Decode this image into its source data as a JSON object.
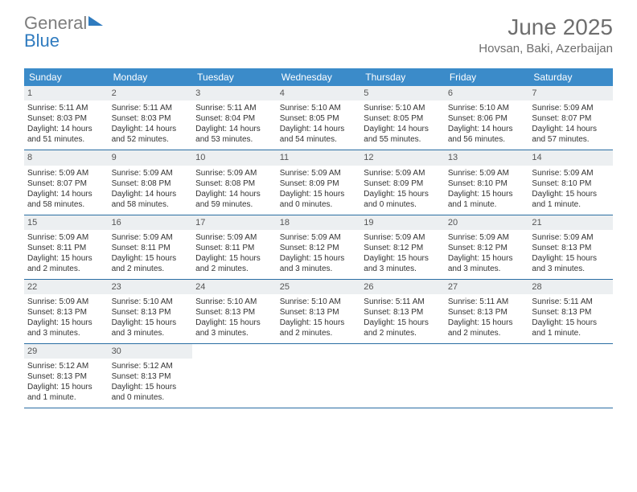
{
  "logo": {
    "text_gray": "General",
    "text_blue": "Blue"
  },
  "header": {
    "title": "June 2025",
    "location": "Hovsan, Baki, Azerbaijan"
  },
  "colors": {
    "header_bg": "#3b8bc9",
    "daynum_bg": "#eceff1",
    "week_border": "#2a6ea3",
    "text_gray": "#6e6e6e"
  },
  "weekdays": [
    "Sunday",
    "Monday",
    "Tuesday",
    "Wednesday",
    "Thursday",
    "Friday",
    "Saturday"
  ],
  "weeks": [
    [
      {
        "n": "1",
        "sunrise": "Sunrise: 5:11 AM",
        "sunset": "Sunset: 8:03 PM",
        "d1": "Daylight: 14 hours",
        "d2": "and 51 minutes."
      },
      {
        "n": "2",
        "sunrise": "Sunrise: 5:11 AM",
        "sunset": "Sunset: 8:03 PM",
        "d1": "Daylight: 14 hours",
        "d2": "and 52 minutes."
      },
      {
        "n": "3",
        "sunrise": "Sunrise: 5:11 AM",
        "sunset": "Sunset: 8:04 PM",
        "d1": "Daylight: 14 hours",
        "d2": "and 53 minutes."
      },
      {
        "n": "4",
        "sunrise": "Sunrise: 5:10 AM",
        "sunset": "Sunset: 8:05 PM",
        "d1": "Daylight: 14 hours",
        "d2": "and 54 minutes."
      },
      {
        "n": "5",
        "sunrise": "Sunrise: 5:10 AM",
        "sunset": "Sunset: 8:05 PM",
        "d1": "Daylight: 14 hours",
        "d2": "and 55 minutes."
      },
      {
        "n": "6",
        "sunrise": "Sunrise: 5:10 AM",
        "sunset": "Sunset: 8:06 PM",
        "d1": "Daylight: 14 hours",
        "d2": "and 56 minutes."
      },
      {
        "n": "7",
        "sunrise": "Sunrise: 5:09 AM",
        "sunset": "Sunset: 8:07 PM",
        "d1": "Daylight: 14 hours",
        "d2": "and 57 minutes."
      }
    ],
    [
      {
        "n": "8",
        "sunrise": "Sunrise: 5:09 AM",
        "sunset": "Sunset: 8:07 PM",
        "d1": "Daylight: 14 hours",
        "d2": "and 58 minutes."
      },
      {
        "n": "9",
        "sunrise": "Sunrise: 5:09 AM",
        "sunset": "Sunset: 8:08 PM",
        "d1": "Daylight: 14 hours",
        "d2": "and 58 minutes."
      },
      {
        "n": "10",
        "sunrise": "Sunrise: 5:09 AM",
        "sunset": "Sunset: 8:08 PM",
        "d1": "Daylight: 14 hours",
        "d2": "and 59 minutes."
      },
      {
        "n": "11",
        "sunrise": "Sunrise: 5:09 AM",
        "sunset": "Sunset: 8:09 PM",
        "d1": "Daylight: 15 hours",
        "d2": "and 0 minutes."
      },
      {
        "n": "12",
        "sunrise": "Sunrise: 5:09 AM",
        "sunset": "Sunset: 8:09 PM",
        "d1": "Daylight: 15 hours",
        "d2": "and 0 minutes."
      },
      {
        "n": "13",
        "sunrise": "Sunrise: 5:09 AM",
        "sunset": "Sunset: 8:10 PM",
        "d1": "Daylight: 15 hours",
        "d2": "and 1 minute."
      },
      {
        "n": "14",
        "sunrise": "Sunrise: 5:09 AM",
        "sunset": "Sunset: 8:10 PM",
        "d1": "Daylight: 15 hours",
        "d2": "and 1 minute."
      }
    ],
    [
      {
        "n": "15",
        "sunrise": "Sunrise: 5:09 AM",
        "sunset": "Sunset: 8:11 PM",
        "d1": "Daylight: 15 hours",
        "d2": "and 2 minutes."
      },
      {
        "n": "16",
        "sunrise": "Sunrise: 5:09 AM",
        "sunset": "Sunset: 8:11 PM",
        "d1": "Daylight: 15 hours",
        "d2": "and 2 minutes."
      },
      {
        "n": "17",
        "sunrise": "Sunrise: 5:09 AM",
        "sunset": "Sunset: 8:11 PM",
        "d1": "Daylight: 15 hours",
        "d2": "and 2 minutes."
      },
      {
        "n": "18",
        "sunrise": "Sunrise: 5:09 AM",
        "sunset": "Sunset: 8:12 PM",
        "d1": "Daylight: 15 hours",
        "d2": "and 3 minutes."
      },
      {
        "n": "19",
        "sunrise": "Sunrise: 5:09 AM",
        "sunset": "Sunset: 8:12 PM",
        "d1": "Daylight: 15 hours",
        "d2": "and 3 minutes."
      },
      {
        "n": "20",
        "sunrise": "Sunrise: 5:09 AM",
        "sunset": "Sunset: 8:12 PM",
        "d1": "Daylight: 15 hours",
        "d2": "and 3 minutes."
      },
      {
        "n": "21",
        "sunrise": "Sunrise: 5:09 AM",
        "sunset": "Sunset: 8:13 PM",
        "d1": "Daylight: 15 hours",
        "d2": "and 3 minutes."
      }
    ],
    [
      {
        "n": "22",
        "sunrise": "Sunrise: 5:09 AM",
        "sunset": "Sunset: 8:13 PM",
        "d1": "Daylight: 15 hours",
        "d2": "and 3 minutes."
      },
      {
        "n": "23",
        "sunrise": "Sunrise: 5:10 AM",
        "sunset": "Sunset: 8:13 PM",
        "d1": "Daylight: 15 hours",
        "d2": "and 3 minutes."
      },
      {
        "n": "24",
        "sunrise": "Sunrise: 5:10 AM",
        "sunset": "Sunset: 8:13 PM",
        "d1": "Daylight: 15 hours",
        "d2": "and 3 minutes."
      },
      {
        "n": "25",
        "sunrise": "Sunrise: 5:10 AM",
        "sunset": "Sunset: 8:13 PM",
        "d1": "Daylight: 15 hours",
        "d2": "and 2 minutes."
      },
      {
        "n": "26",
        "sunrise": "Sunrise: 5:11 AM",
        "sunset": "Sunset: 8:13 PM",
        "d1": "Daylight: 15 hours",
        "d2": "and 2 minutes."
      },
      {
        "n": "27",
        "sunrise": "Sunrise: 5:11 AM",
        "sunset": "Sunset: 8:13 PM",
        "d1": "Daylight: 15 hours",
        "d2": "and 2 minutes."
      },
      {
        "n": "28",
        "sunrise": "Sunrise: 5:11 AM",
        "sunset": "Sunset: 8:13 PM",
        "d1": "Daylight: 15 hours",
        "d2": "and 1 minute."
      }
    ],
    [
      {
        "n": "29",
        "sunrise": "Sunrise: 5:12 AM",
        "sunset": "Sunset: 8:13 PM",
        "d1": "Daylight: 15 hours",
        "d2": "and 1 minute."
      },
      {
        "n": "30",
        "sunrise": "Sunrise: 5:12 AM",
        "sunset": "Sunset: 8:13 PM",
        "d1": "Daylight: 15 hours",
        "d2": "and 0 minutes."
      },
      null,
      null,
      null,
      null,
      null
    ]
  ]
}
